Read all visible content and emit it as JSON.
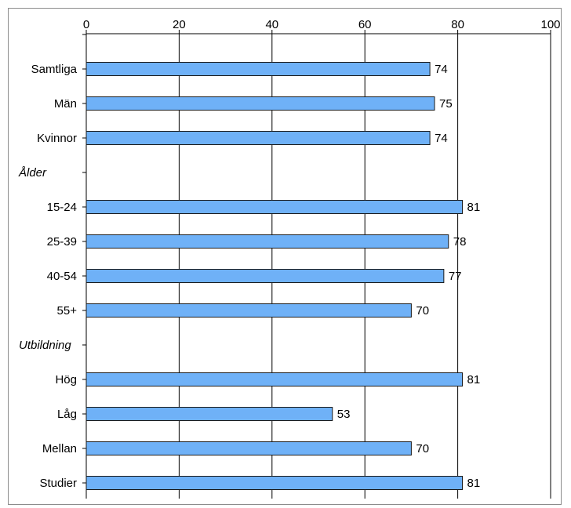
{
  "chart_data": {
    "type": "bar",
    "orientation": "horizontal",
    "title": "",
    "xlabel": "",
    "ylabel": "",
    "xlim": [
      0,
      100
    ],
    "xticks": [
      0,
      20,
      40,
      60,
      80,
      100
    ],
    "grid": true,
    "legend": "none",
    "bar_color": "#6fb1f7",
    "bar_edge_color": "#1a1a1a",
    "rows": [
      {
        "label": "Samtliga",
        "value": 74,
        "value_label": "74"
      },
      {
        "label": "Män",
        "value": 75,
        "value_label": "75"
      },
      {
        "label": "Kvinnor",
        "value": 74,
        "value_label": "74"
      },
      {
        "label": "Ålder",
        "heading": true
      },
      {
        "label": "15-24",
        "value": 81,
        "value_label": "81"
      },
      {
        "label": "25-39",
        "value": 78,
        "value_label": "78"
      },
      {
        "label": "40-54",
        "value": 77,
        "value_label": "77"
      },
      {
        "label": "55+",
        "value": 70,
        "value_label": "70"
      },
      {
        "label": "Utbildning",
        "heading": true
      },
      {
        "label": "Hög",
        "value": 81,
        "value_label": "81"
      },
      {
        "label": "Låg",
        "value": 53,
        "value_label": "53"
      },
      {
        "label": "Mellan",
        "value": 70,
        "value_label": "70"
      },
      {
        "label": "Studier",
        "value": 81,
        "value_label": "81"
      }
    ]
  }
}
